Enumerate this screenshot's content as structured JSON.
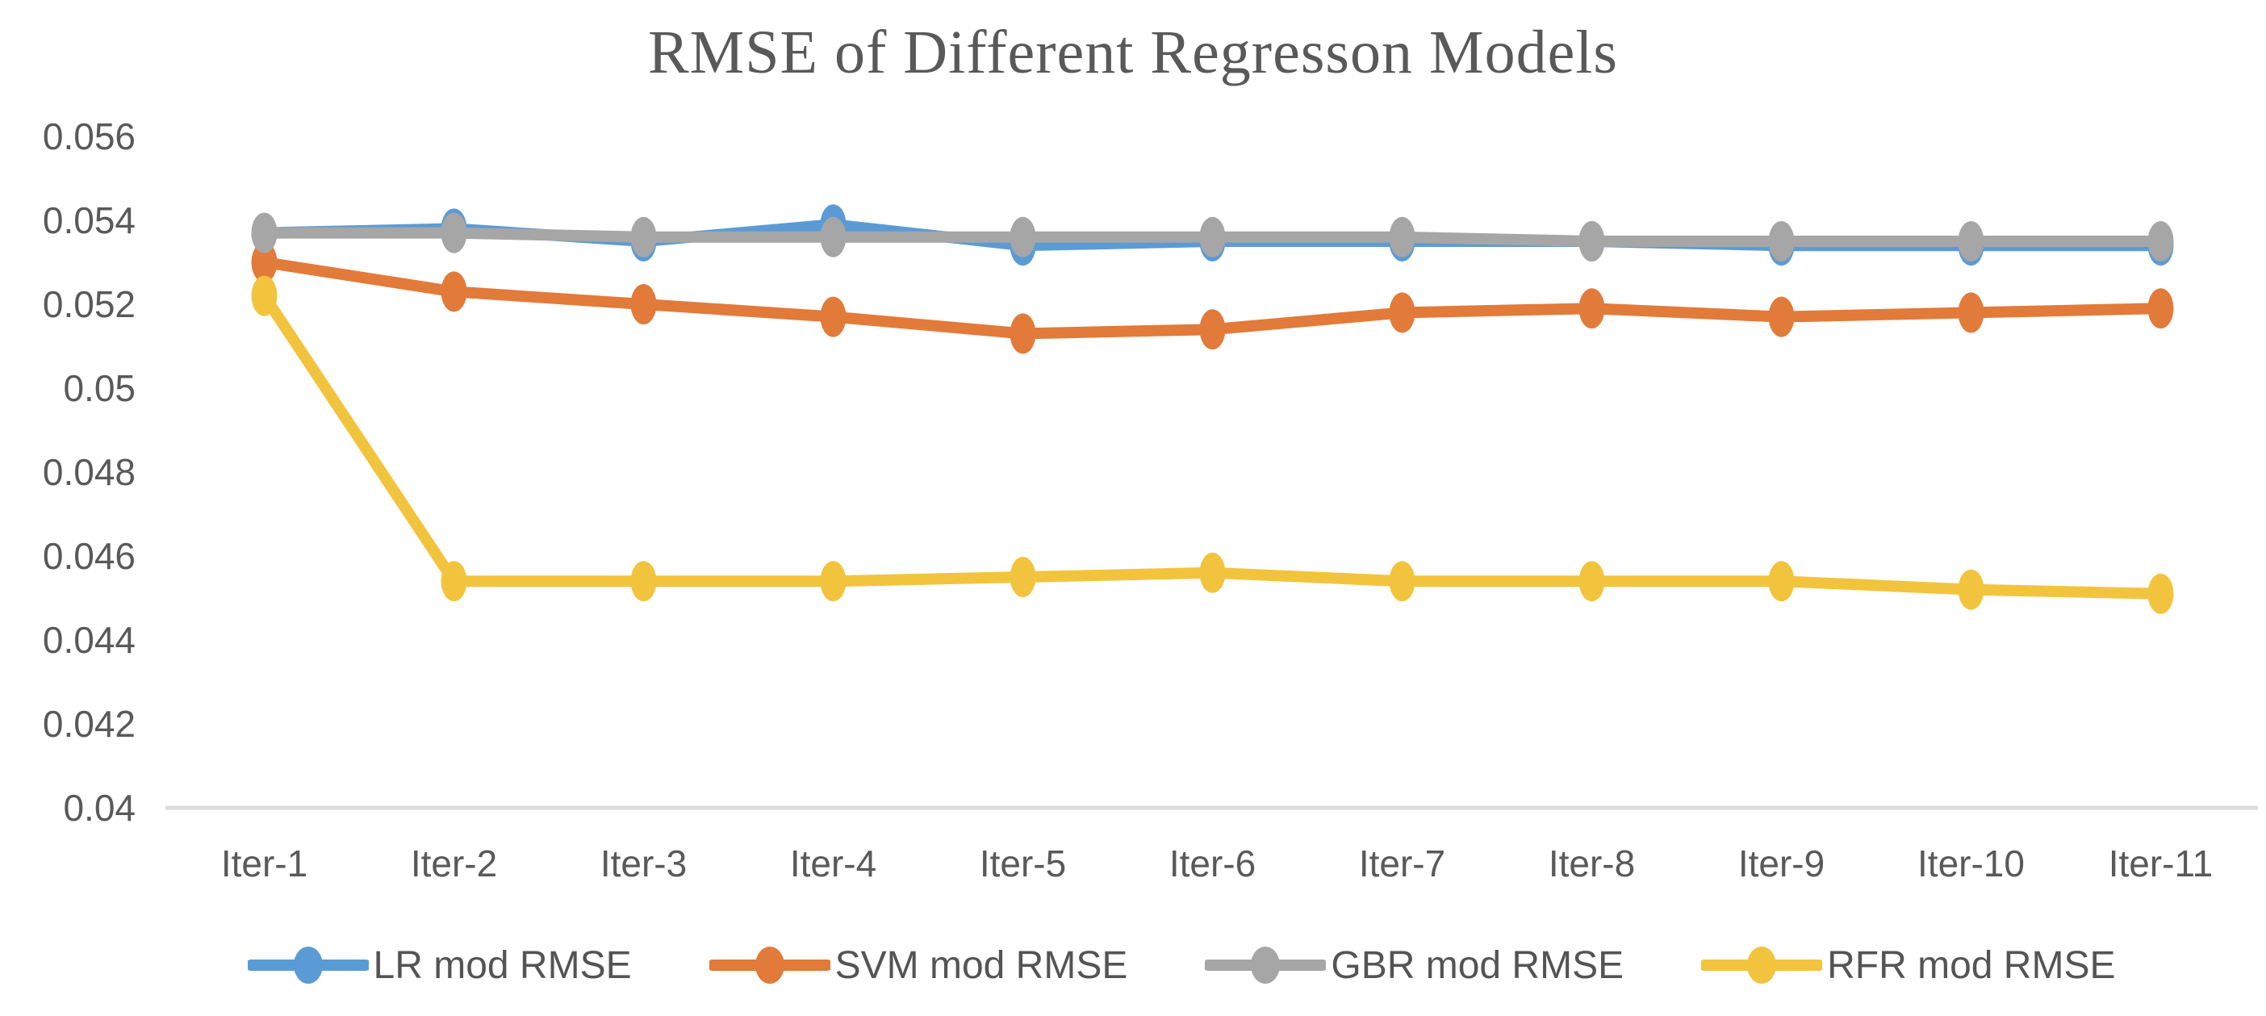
{
  "chart_data": {
    "type": "line",
    "title": "RMSE of Different Regresson Models",
    "categories": [
      "Iter-1",
      "Iter-2",
      "Iter-3",
      "Iter-4",
      "Iter-5",
      "Iter-6",
      "Iter-7",
      "Iter-8",
      "Iter-9",
      "Iter-10",
      "Iter-11"
    ],
    "series": [
      {
        "name": "LR mod RMSE",
        "color": "#5B9BD5",
        "values": [
          0.0537,
          0.0538,
          0.0535,
          0.0539,
          0.0534,
          0.0535,
          0.0535,
          0.0535,
          0.0534,
          0.0534,
          0.0534
        ]
      },
      {
        "name": "SVM mod RMSE",
        "color": "#E27A3A",
        "values": [
          0.053,
          0.0523,
          0.052,
          0.0517,
          0.0513,
          0.0514,
          0.0518,
          0.0519,
          0.0517,
          0.0518,
          0.0519
        ]
      },
      {
        "name": "GBR mod RMSE",
        "color": "#A6A6A6",
        "values": [
          0.0537,
          0.0537,
          0.0536,
          0.0536,
          0.0536,
          0.0536,
          0.0536,
          0.0535,
          0.0535,
          0.0535,
          0.0535
        ]
      },
      {
        "name": "RFR mod RMSE",
        "color": "#F2C43D",
        "values": [
          0.0522,
          0.0454,
          0.0454,
          0.0454,
          0.0455,
          0.0456,
          0.0454,
          0.0454,
          0.0454,
          0.0452,
          0.0451
        ]
      }
    ],
    "xlabel": "",
    "ylabel": "",
    "ylim": [
      0.04,
      0.056
    ],
    "y_tick_values": [
      0.056,
      0.054,
      0.052,
      0.05,
      0.048,
      0.046,
      0.044,
      0.042,
      0.04
    ],
    "y_tick_labels": [
      "0.056",
      "0.054",
      "0.052",
      "0.05",
      "0.048",
      "0.046",
      "0.044",
      "0.042",
      "0.04"
    ],
    "grid": false,
    "legend_position": "bottom",
    "axis_line_color": "#DCDCDC",
    "text_color": "#595959"
  }
}
